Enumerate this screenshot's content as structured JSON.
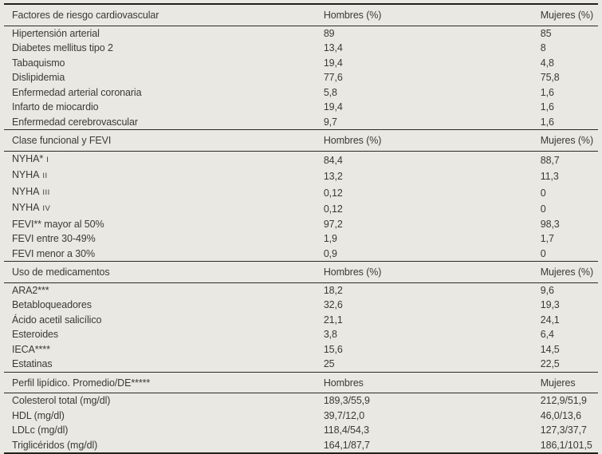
{
  "page": {
    "background_color": "#e9e8e3",
    "text_color": "#3b3a36",
    "rule_color": "#22211c"
  },
  "table": {
    "sections": [
      {
        "header": "Factores de riesgo cardiovascular",
        "col_hombres": "Hombres (%)",
        "col_mujeres": "Mujeres (%)",
        "rows": [
          {
            "label": "Hipertensión arterial",
            "hombres": "89",
            "mujeres": "85"
          },
          {
            "label": "Diabetes mellitus tipo 2",
            "hombres": "13,4",
            "mujeres": "8"
          },
          {
            "label": "Tabaquismo",
            "hombres": "19,4",
            "mujeres": "4,8"
          },
          {
            "label": "Dislipidemia",
            "hombres": "77,6",
            "mujeres": "75,8"
          },
          {
            "label": "Enfermedad arterial coronaria",
            "hombres": "5,8",
            "mujeres": "1,6"
          },
          {
            "label": "Infarto de miocardio",
            "hombres": "19,4",
            "mujeres": "1,6"
          },
          {
            "label": "Enfermedad cerebrovascular",
            "hombres": "9,7",
            "mujeres": "1,6"
          }
        ]
      },
      {
        "header": "Clase funcional y FEVI",
        "col_hombres": "Hombres (%)",
        "col_mujeres": "Mujeres (%)",
        "rows": [
          {
            "label": "NYHA*",
            "suffix": "I",
            "hombres": "84,4",
            "mujeres": "88,7"
          },
          {
            "label": "NYHA",
            "suffix": "II",
            "hombres": "13,2",
            "mujeres": "11,3"
          },
          {
            "label": "NYHA",
            "suffix": "III",
            "hombres": "0,12",
            "mujeres": "0"
          },
          {
            "label": "NYHA",
            "suffix": "IV",
            "hombres": "0,12",
            "mujeres": "0"
          },
          {
            "label": "FEVI** mayor al 50%",
            "hombres": "97,2",
            "mujeres": "98,3"
          },
          {
            "label": "FEVI entre 30-49%",
            "hombres": "1,9",
            "mujeres": "1,7"
          },
          {
            "label": "FEVI menor a 30%",
            "hombres": "0,9",
            "mujeres": "0"
          }
        ]
      },
      {
        "header": "Uso de medicamentos",
        "col_hombres": "Hombres (%)",
        "col_mujeres": "Mujeres (%)",
        "rows": [
          {
            "label": "ARA2***",
            "hombres": "18,2",
            "mujeres": "9,6"
          },
          {
            "label": "Betabloqueadores",
            "hombres": "32,6",
            "mujeres": "19,3"
          },
          {
            "label": "Ácido acetil salicílico",
            "hombres": "21,1",
            "mujeres": "24,1"
          },
          {
            "label": "Esteroides",
            "hombres": "3,8",
            "mujeres": "6,4"
          },
          {
            "label": "IECA****",
            "hombres": "15,6",
            "mujeres": "14,5"
          },
          {
            "label": "Estatinas",
            "hombres": "25",
            "mujeres": "22,5"
          }
        ]
      },
      {
        "header": "Perfil lipídico. Promedio/DE*****",
        "col_hombres": "Hombres",
        "col_mujeres": "Mujeres",
        "rows": [
          {
            "label": "Colesterol total (mg/dl)",
            "hombres": "189,3/55,9",
            "mujeres": "212,9/51,9"
          },
          {
            "label": "HDL (mg/dl)",
            "hombres": "39,7/12,0",
            "mujeres": "46,0/13,6"
          },
          {
            "label": "LDLc (mg/dl)",
            "hombres": "118,4/54,3",
            "mujeres": "127,3/37,7"
          },
          {
            "label": "Triglicéridos (mg/dl)",
            "hombres": "164,1/87,7",
            "mujeres": "186,1/101,5"
          }
        ]
      }
    ]
  }
}
